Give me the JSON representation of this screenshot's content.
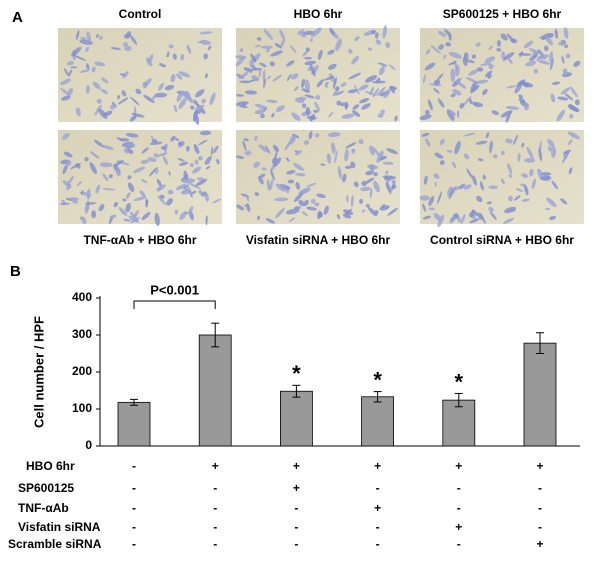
{
  "panel_a": {
    "letter": "A",
    "top_labels": [
      "Control",
      "HBO 6hr",
      "SP600125 + HBO 6hr"
    ],
    "bottom_labels": [
      "TNF-αAb + HBO 6hr",
      "Visfatin siRNA + HBO 6hr",
      "Control siRNA + HBO 6hr"
    ]
  },
  "chart_data": {
    "type": "bar",
    "panel_letter": "B",
    "y_label": "Cell number / HPF",
    "categories": [
      null,
      null,
      null,
      null,
      null,
      null
    ],
    "values": [
      118,
      300,
      148,
      133,
      124,
      278
    ],
    "errors": [
      8,
      32,
      16,
      14,
      18,
      28
    ],
    "color": "#999999",
    "ylim": [
      0,
      400
    ],
    "yticks": [
      0,
      100,
      200,
      300,
      400
    ],
    "significance_marks": [
      null,
      null,
      "*",
      "*",
      "*",
      null
    ],
    "annotation": "P<0.001",
    "treatment_table": [
      {
        "label": "HBO 6hr",
        "signs": [
          "-",
          "+",
          "+",
          "+",
          "+",
          "+"
        ]
      },
      {
        "label": "SP600125",
        "signs": [
          "-",
          "-",
          "+",
          "-",
          "-",
          "-"
        ]
      },
      {
        "label": "TNF-αAb",
        "signs": [
          "-",
          "-",
          "-",
          "+",
          "-",
          "-"
        ]
      },
      {
        "label": "Visfatin siRNA",
        "signs": [
          "-",
          "-",
          "-",
          "-",
          "+",
          "-"
        ]
      },
      {
        "label": "Scramble siRNA",
        "signs": [
          "-",
          "-",
          "-",
          "-",
          "-",
          "+"
        ]
      }
    ]
  }
}
